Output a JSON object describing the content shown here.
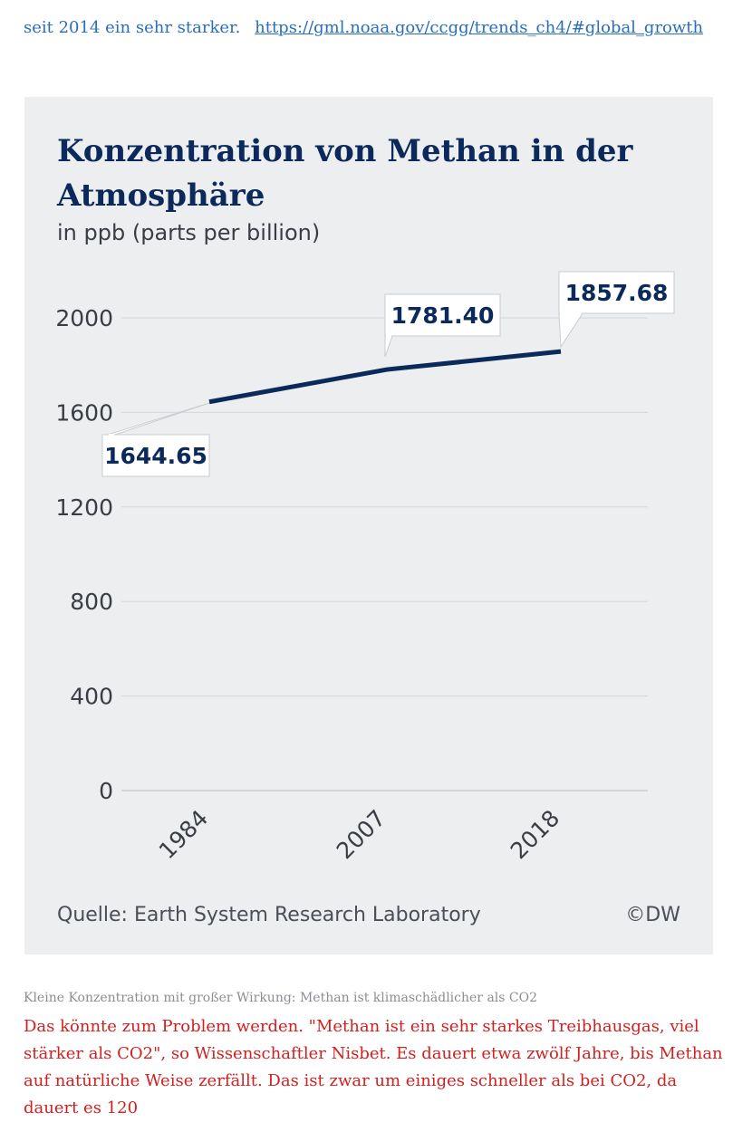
{
  "top_text": {
    "prefix": "seit 2014 ein sehr starker.",
    "link": "https://gml.noaa.gov/ccgg/trends_ch4/#global_growth"
  },
  "chart": {
    "title": "Konzentration von Methan in der Atmosphäre",
    "subtitle": "in ppb (parts per billion)",
    "source": "Quelle: Earth System Research Laboratory",
    "credit": "©DW"
  },
  "chart_data": {
    "type": "line",
    "x": [
      "1984",
      "2007",
      "2018"
    ],
    "series": [
      {
        "values": [
          1644.65,
          1781.4,
          1857.68
        ]
      }
    ],
    "data_labels": [
      "1644.65",
      "1781.40",
      "1857.68"
    ],
    "yticks": [
      "0",
      "400",
      "800",
      "1200",
      "1600",
      "2000"
    ],
    "ylim": [
      0,
      2000
    ],
    "grid": true,
    "title": "Konzentration von Methan in der Atmosphäre",
    "ylabel": "in ppb (parts per billion)",
    "xlabel": "",
    "line_color": "#0b2a5b"
  },
  "caption": "Kleine Konzentration mit großer Wirkung: Methan ist klimaschädlicher als CO2",
  "body_text": "Das könnte zum Problem werden. \"Methan ist ein sehr starkes Treibhausgas, viel stärker als CO2\", so Wissenschaftler Nisbet. Es dauert etwa zwölf Jahre, bis Methan auf natürliche Weise zerfällt. Das ist zwar um einiges schneller als bei CO2, da dauert es 120"
}
